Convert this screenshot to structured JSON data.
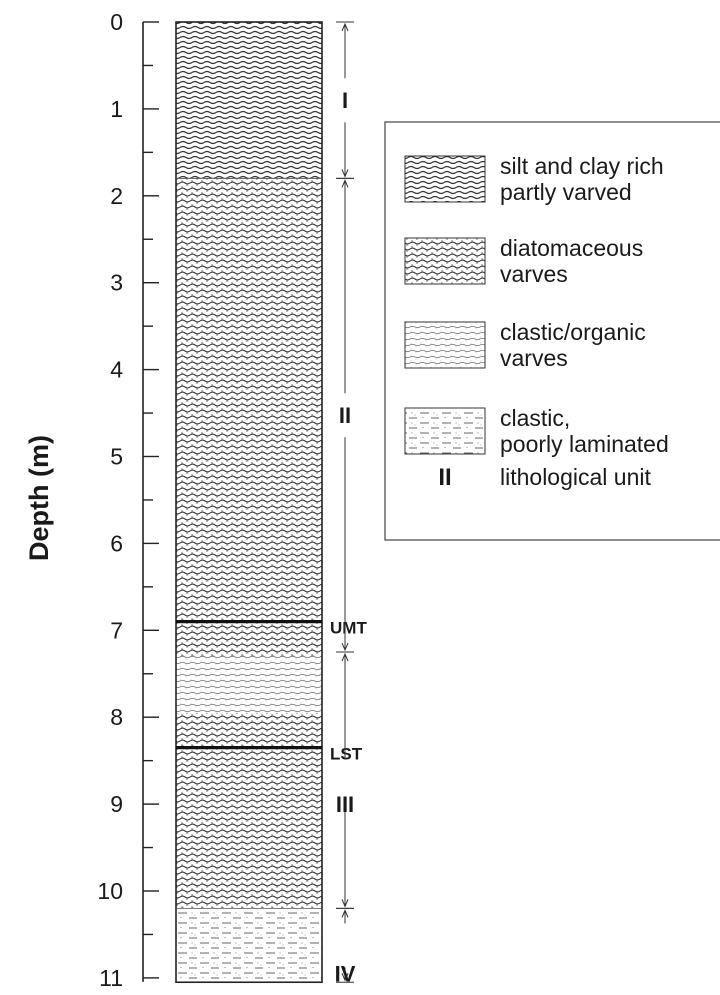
{
  "axis": {
    "title": "Depth (m)",
    "min": 0,
    "max": 11,
    "ticks": [
      "0",
      "1",
      "2",
      "3",
      "4",
      "5",
      "6",
      "7",
      "8",
      "9",
      "10",
      "11"
    ]
  },
  "column": {
    "layers": [
      {
        "from": 0,
        "to": 1.8,
        "type": "silt_clay"
      },
      {
        "from": 1.8,
        "to": 6.9,
        "type": "diatomaceous"
      },
      {
        "from": 6.9,
        "to": 7.3,
        "type": "diatomaceous"
      },
      {
        "from": 7.3,
        "to": 7.95,
        "type": "clastic_organic"
      },
      {
        "from": 7.95,
        "to": 10.2,
        "type": "diatomaceous"
      },
      {
        "from": 10.2,
        "to": 11.05,
        "type": "clastic_poor"
      }
    ]
  },
  "units": [
    {
      "label": "I",
      "from": 0,
      "to": 1.8
    },
    {
      "label": "II",
      "from": 1.8,
      "to": 7.25
    },
    {
      "label": "III",
      "from": 7.25,
      "to": 10.2
    },
    {
      "label": "IV",
      "from": 10.2,
      "to": 11.05
    }
  ],
  "markers": [
    {
      "label": "UMT",
      "depth": 6.9
    },
    {
      "label": "LST",
      "depth": 8.35
    }
  ],
  "legend": {
    "items": [
      {
        "type": "silt_clay",
        "lines": [
          "silt and clay rich",
          "partly varved"
        ]
      },
      {
        "type": "diatomaceous",
        "lines": [
          "diatomaceous",
          "varves"
        ]
      },
      {
        "type": "clastic_organic",
        "lines": [
          "clastic/organic",
          "varves"
        ]
      },
      {
        "type": "clastic_poor",
        "lines": [
          "clastic,",
          "poorly laminated"
        ]
      }
    ],
    "unit_symbol": "II",
    "unit_text": "lithological unit"
  }
}
